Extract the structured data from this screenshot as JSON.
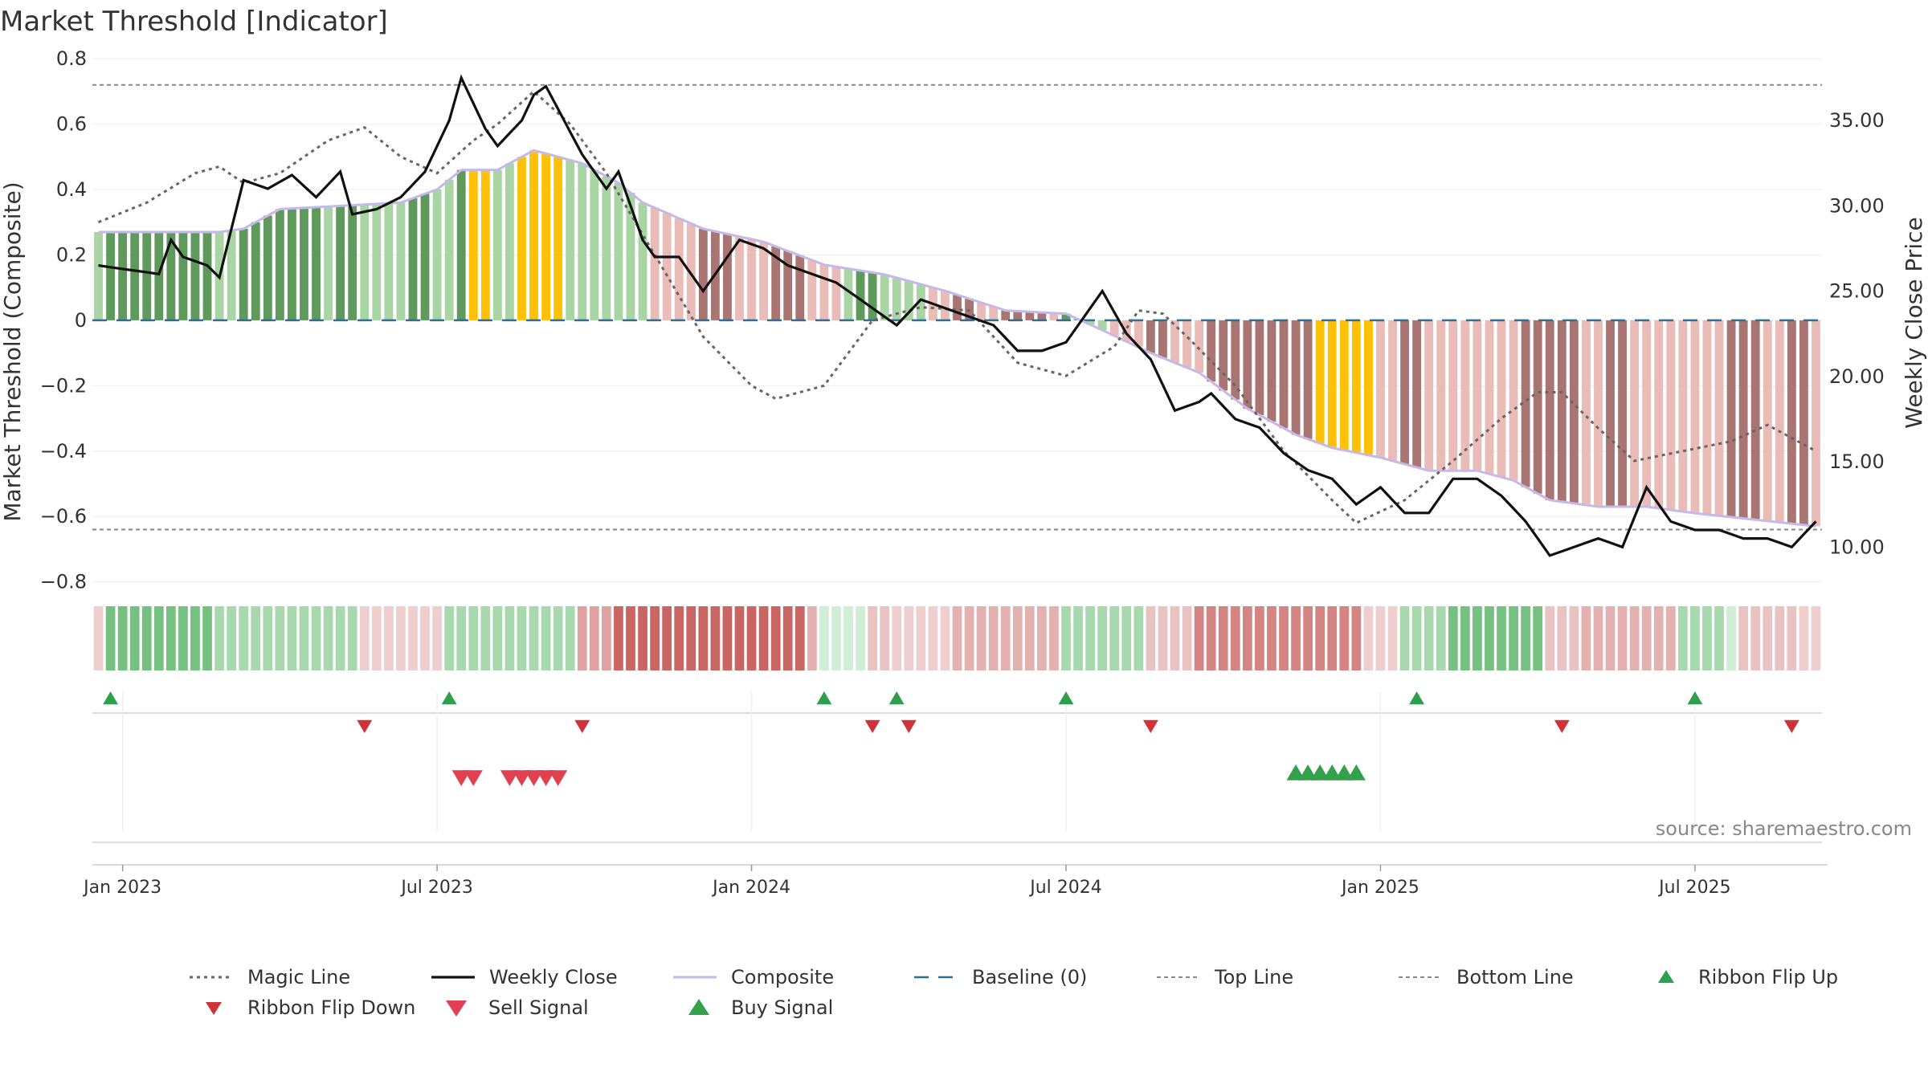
{
  "chart_data": {
    "type": "bar",
    "title": "Market Threshold [Indicator]",
    "ylabel": "Market Threshold (Composite)",
    "y2label": "Weekly Close Price",
    "source": "source: sharemaestro.com",
    "ylim": [
      -0.85,
      0.82
    ],
    "y2lim": [
      7.0,
      39.0
    ],
    "yticks": [
      0.8,
      0.6,
      0.4,
      0.2,
      0,
      -0.2,
      -0.4,
      -0.6,
      -0.8
    ],
    "ytick_labels": [
      "0.8",
      "0.6",
      "0.4",
      "0.2",
      "0",
      "−0.2",
      "−0.4",
      "−0.6",
      "−0.8"
    ],
    "y2ticks": [
      35,
      30,
      25,
      20,
      15,
      10
    ],
    "y2tick_labels": [
      "35.00",
      "30.00",
      "25.00",
      "20.00",
      "15.00",
      "10.00"
    ],
    "xticks": [
      {
        "label": "Jan 2023",
        "week": 2
      },
      {
        "label": "Jul 2023",
        "week": 28
      },
      {
        "label": "Jan 2024",
        "week": 54
      },
      {
        "label": "Jul 2024",
        "week": 80
      },
      {
        "label": "Jan 2025",
        "week": 106
      },
      {
        "label": "Jul 2025",
        "week": 132
      }
    ],
    "top_line": 0.72,
    "bottom_line": -0.64,
    "weeks": 143,
    "composite_anchors": [
      [
        0,
        0.27
      ],
      [
        10,
        0.27
      ],
      [
        12,
        0.28
      ],
      [
        15,
        0.34
      ],
      [
        20,
        0.35
      ],
      [
        25,
        0.36
      ],
      [
        28,
        0.4
      ],
      [
        30,
        0.46
      ],
      [
        33,
        0.46
      ],
      [
        36,
        0.52
      ],
      [
        40,
        0.48
      ],
      [
        43,
        0.42
      ],
      [
        45,
        0.36
      ],
      [
        50,
        0.28
      ],
      [
        55,
        0.24
      ],
      [
        60,
        0.17
      ],
      [
        65,
        0.14
      ],
      [
        70,
        0.09
      ],
      [
        75,
        0.03
      ],
      [
        80,
        0.02
      ],
      [
        83,
        -0.03
      ],
      [
        87,
        -0.1
      ],
      [
        91,
        -0.16
      ],
      [
        95,
        -0.27
      ],
      [
        99,
        -0.35
      ],
      [
        102,
        -0.39
      ],
      [
        106,
        -0.42
      ],
      [
        110,
        -0.46
      ],
      [
        114,
        -0.46
      ],
      [
        117,
        -0.49
      ],
      [
        120,
        -0.55
      ],
      [
        124,
        -0.57
      ],
      [
        128,
        -0.57
      ],
      [
        132,
        -0.59
      ],
      [
        137,
        -0.61
      ],
      [
        142,
        -0.63
      ]
    ],
    "magic_anchors": [
      [
        0,
        0.3
      ],
      [
        4,
        0.36
      ],
      [
        8,
        0.45
      ],
      [
        10,
        0.47
      ],
      [
        12,
        0.42
      ],
      [
        15,
        0.45
      ],
      [
        19,
        0.55
      ],
      [
        22,
        0.59
      ],
      [
        25,
        0.5
      ],
      [
        28,
        0.45
      ],
      [
        31,
        0.55
      ],
      [
        33,
        0.6
      ],
      [
        36,
        0.7
      ],
      [
        39,
        0.6
      ],
      [
        42,
        0.45
      ],
      [
        46,
        0.2
      ],
      [
        50,
        -0.05
      ],
      [
        54,
        -0.2
      ],
      [
        56,
        -0.24
      ],
      [
        60,
        -0.2
      ],
      [
        64,
        0.0
      ],
      [
        68,
        0.04
      ],
      [
        72,
        0.03
      ],
      [
        76,
        -0.13
      ],
      [
        80,
        -0.17
      ],
      [
        84,
        -0.08
      ],
      [
        86,
        0.03
      ],
      [
        88,
        0.02
      ],
      [
        90,
        -0.05
      ],
      [
        94,
        -0.2
      ],
      [
        98,
        -0.4
      ],
      [
        102,
        -0.55
      ],
      [
        104,
        -0.62
      ],
      [
        108,
        -0.55
      ],
      [
        112,
        -0.43
      ],
      [
        116,
        -0.3
      ],
      [
        119,
        -0.22
      ],
      [
        121,
        -0.22
      ],
      [
        124,
        -0.33
      ],
      [
        127,
        -0.43
      ],
      [
        131,
        -0.4
      ],
      [
        135,
        -0.37
      ],
      [
        138,
        -0.32
      ],
      [
        140,
        -0.36
      ],
      [
        142,
        -0.4
      ]
    ],
    "close_anchors": [
      [
        0,
        26.5
      ],
      [
        3,
        26.2
      ],
      [
        5,
        26.0
      ],
      [
        6,
        28.0
      ],
      [
        7,
        27.0
      ],
      [
        9,
        26.5
      ],
      [
        10,
        25.8
      ],
      [
        12,
        31.5
      ],
      [
        14,
        31.0
      ],
      [
        16,
        31.8
      ],
      [
        18,
        30.5
      ],
      [
        20,
        32.0
      ],
      [
        21,
        29.5
      ],
      [
        23,
        29.8
      ],
      [
        25,
        30.5
      ],
      [
        27,
        32.0
      ],
      [
        29,
        35.0
      ],
      [
        30,
        37.5
      ],
      [
        32,
        34.5
      ],
      [
        33,
        33.5
      ],
      [
        35,
        35.0
      ],
      [
        36,
        36.5
      ],
      [
        37,
        37.0
      ],
      [
        40,
        33.0
      ],
      [
        42,
        31.0
      ],
      [
        43,
        32.0
      ],
      [
        45,
        28.0
      ],
      [
        46,
        27.0
      ],
      [
        48,
        27.0
      ],
      [
        50,
        25.0
      ],
      [
        53,
        28.0
      ],
      [
        55,
        27.5
      ],
      [
        57,
        26.5
      ],
      [
        59,
        26.0
      ],
      [
        61,
        25.5
      ],
      [
        63,
        24.5
      ],
      [
        66,
        23.0
      ],
      [
        68,
        24.5
      ],
      [
        70,
        24.0
      ],
      [
        72,
        23.5
      ],
      [
        74,
        23.0
      ],
      [
        76,
        21.5
      ],
      [
        78,
        21.5
      ],
      [
        80,
        22.0
      ],
      [
        82,
        24.0
      ],
      [
        83,
        25.0
      ],
      [
        85,
        22.5
      ],
      [
        87,
        21.0
      ],
      [
        89,
        18.0
      ],
      [
        91,
        18.5
      ],
      [
        92,
        19.0
      ],
      [
        94,
        17.5
      ],
      [
        96,
        17.0
      ],
      [
        98,
        15.5
      ],
      [
        100,
        14.5
      ],
      [
        102,
        14.0
      ],
      [
        104,
        12.5
      ],
      [
        106,
        13.5
      ],
      [
        108,
        12.0
      ],
      [
        110,
        12.0
      ],
      [
        112,
        14.0
      ],
      [
        114,
        14.0
      ],
      [
        116,
        13.0
      ],
      [
        118,
        11.5
      ],
      [
        120,
        9.5
      ],
      [
        122,
        10.0
      ],
      [
        124,
        10.5
      ],
      [
        126,
        10.0
      ],
      [
        128,
        13.5
      ],
      [
        130,
        11.5
      ],
      [
        132,
        11.0
      ],
      [
        134,
        11.0
      ],
      [
        136,
        10.5
      ],
      [
        138,
        10.5
      ],
      [
        140,
        10.0
      ],
      [
        142,
        11.5
      ]
    ],
    "bar_segments": [
      {
        "start": 0,
        "end": 1,
        "color": "#a8d5a3"
      },
      {
        "start": 1,
        "end": 10,
        "color": "#5f9a5c"
      },
      {
        "start": 10,
        "end": 12,
        "color": "#a8d5a3"
      },
      {
        "start": 12,
        "end": 19,
        "color": "#5f9a5c"
      },
      {
        "start": 19,
        "end": 20,
        "color": "#a8d5a3"
      },
      {
        "start": 20,
        "end": 22,
        "color": "#5f9a5c"
      },
      {
        "start": 22,
        "end": 26,
        "color": "#a8d5a3"
      },
      {
        "start": 26,
        "end": 28,
        "color": "#5f9a5c"
      },
      {
        "start": 28,
        "end": 30,
        "color": "#a8d5a3"
      },
      {
        "start": 30,
        "end": 31,
        "color": "#5f9a5c"
      },
      {
        "start": 31,
        "end": 33,
        "color": "#ffc107"
      },
      {
        "start": 33,
        "end": 35,
        "color": "#a8d5a3"
      },
      {
        "start": 35,
        "end": 39,
        "color": "#ffc107"
      },
      {
        "start": 39,
        "end": 46,
        "color": "#a8d5a3"
      },
      {
        "start": 46,
        "end": 50,
        "color": "#e9bcb8"
      },
      {
        "start": 50,
        "end": 53,
        "color": "#a97572"
      },
      {
        "start": 53,
        "end": 56,
        "color": "#e9bcb8"
      },
      {
        "start": 56,
        "end": 59,
        "color": "#a97572"
      },
      {
        "start": 59,
        "end": 62,
        "color": "#e9bcb8"
      },
      {
        "start": 62,
        "end": 63,
        "color": "#a8d5a3"
      },
      {
        "start": 63,
        "end": 65,
        "color": "#5f9a5c"
      },
      {
        "start": 65,
        "end": 69,
        "color": "#a8d5a3"
      },
      {
        "start": 69,
        "end": 71,
        "color": "#e9bcb8"
      },
      {
        "start": 71,
        "end": 73,
        "color": "#a97572"
      },
      {
        "start": 73,
        "end": 75,
        "color": "#e9bcb8"
      },
      {
        "start": 75,
        "end": 79,
        "color": "#a97572"
      },
      {
        "start": 79,
        "end": 80,
        "color": "#e9bcb8"
      },
      {
        "start": 80,
        "end": 82,
        "color": "#5f9a5c"
      },
      {
        "start": 82,
        "end": 84,
        "color": "#a8d5a3"
      },
      {
        "start": 84,
        "end": 87,
        "color": "#e9bcb8"
      },
      {
        "start": 87,
        "end": 89,
        "color": "#a97572"
      },
      {
        "start": 89,
        "end": 92,
        "color": "#e9bcb8"
      },
      {
        "start": 92,
        "end": 101,
        "color": "#a97572"
      },
      {
        "start": 101,
        "end": 106,
        "color": "#ffc107"
      },
      {
        "start": 106,
        "end": 108,
        "color": "#e9bcb8"
      },
      {
        "start": 108,
        "end": 110,
        "color": "#a97572"
      },
      {
        "start": 110,
        "end": 118,
        "color": "#e9bcb8"
      },
      {
        "start": 118,
        "end": 123,
        "color": "#a97572"
      },
      {
        "start": 123,
        "end": 125,
        "color": "#e9bcb8"
      },
      {
        "start": 125,
        "end": 127,
        "color": "#a97572"
      },
      {
        "start": 127,
        "end": 135,
        "color": "#e9bcb8"
      },
      {
        "start": 135,
        "end": 138,
        "color": "#a97572"
      },
      {
        "start": 138,
        "end": 140,
        "color": "#e9bcb8"
      },
      {
        "start": 140,
        "end": 142,
        "color": "#a97572"
      },
      {
        "start": 142,
        "end": 143,
        "color": "#e9bcb8"
      }
    ],
    "ribbon_segments": [
      {
        "start": 0,
        "end": 1,
        "color": "#eecfcd"
      },
      {
        "start": 1,
        "end": 10,
        "color": "#76c182"
      },
      {
        "start": 10,
        "end": 22,
        "color": "#a8d9ae"
      },
      {
        "start": 22,
        "end": 29,
        "color": "#eecfcd"
      },
      {
        "start": 29,
        "end": 40,
        "color": "#a8d9ae"
      },
      {
        "start": 40,
        "end": 43,
        "color": "#dfa2a0"
      },
      {
        "start": 43,
        "end": 59,
        "color": "#c96664"
      },
      {
        "start": 59,
        "end": 60,
        "color": "#e3b1af"
      },
      {
        "start": 60,
        "end": 64,
        "color": "#cfeed5"
      },
      {
        "start": 64,
        "end": 66,
        "color": "#e9c3c1"
      },
      {
        "start": 66,
        "end": 71,
        "color": "#eecfcd"
      },
      {
        "start": 71,
        "end": 80,
        "color": "#e3b1af"
      },
      {
        "start": 80,
        "end": 87,
        "color": "#a8d9ae"
      },
      {
        "start": 87,
        "end": 91,
        "color": "#e9c3c1"
      },
      {
        "start": 91,
        "end": 105,
        "color": "#d48583"
      },
      {
        "start": 105,
        "end": 108,
        "color": "#eecfcd"
      },
      {
        "start": 108,
        "end": 112,
        "color": "#a8d9ae"
      },
      {
        "start": 112,
        "end": 120,
        "color": "#76c182"
      },
      {
        "start": 120,
        "end": 123,
        "color": "#e9c3c1"
      },
      {
        "start": 123,
        "end": 131,
        "color": "#e3b1af"
      },
      {
        "start": 131,
        "end": 135,
        "color": "#a8d9ae"
      },
      {
        "start": 135,
        "end": 136,
        "color": "#cfeed5"
      },
      {
        "start": 136,
        "end": 141,
        "color": "#e9c3c1"
      },
      {
        "start": 141,
        "end": 143,
        "color": "#eecfcd"
      }
    ],
    "ribbon_flip_up_weeks": [
      1,
      29,
      60,
      66,
      80,
      109,
      132
    ],
    "ribbon_flip_down_weeks": [
      22,
      40,
      64,
      67,
      87,
      121,
      140
    ],
    "sell_signal_weeks": [
      30,
      31,
      34,
      35,
      36,
      37,
      38
    ],
    "buy_signal_weeks": [
      99,
      100,
      101,
      102,
      103,
      104
    ],
    "legend": [
      {
        "key": "magic",
        "label": "Magic Line"
      },
      {
        "key": "close",
        "label": "Weekly Close"
      },
      {
        "key": "composite",
        "label": "Composite"
      },
      {
        "key": "baseline",
        "label": "Baseline (0)"
      },
      {
        "key": "top",
        "label": "Top Line"
      },
      {
        "key": "bottom",
        "label": "Bottom Line"
      },
      {
        "key": "flipup",
        "label": "Ribbon Flip Up"
      },
      {
        "key": "flipdown",
        "label": "Ribbon Flip Down"
      },
      {
        "key": "sell",
        "label": "Sell Signal"
      },
      {
        "key": "buy",
        "label": "Buy Signal"
      }
    ],
    "colors": {
      "magic": "#666666",
      "close": "#111111",
      "composite": "#c5b9ea",
      "baseline": "#2f6e96",
      "refline": "#888888",
      "flipup": "#2e9e4f",
      "flipdown": "#d0323a",
      "sell": "#e04050",
      "buy": "#33a04a",
      "grid": "#eeeeee"
    }
  }
}
